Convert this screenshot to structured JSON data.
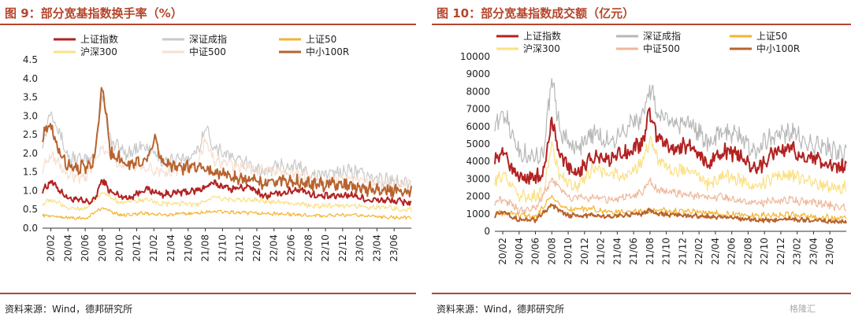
{
  "source_text": "资料来源：Wind，德邦研究所",
  "watermark": "格隆汇",
  "colors": {
    "accent": "#b5462c"
  },
  "chart_data": [
    {
      "type": "line",
      "title": "图 9：部分宽基指数换手率（%）",
      "ylim": [
        0,
        4.5
      ],
      "yticks": [
        "0.0",
        "0.5",
        "1.0",
        "1.5",
        "2.0",
        "2.5",
        "3.0",
        "3.5",
        "4.0",
        "4.5"
      ],
      "xticks": [
        "20/02",
        "20/04",
        "20/06",
        "20/08",
        "20/10",
        "20/12",
        "21/02",
        "21/04",
        "21/06",
        "21/08",
        "21/10",
        "21/12",
        "22/02",
        "22/04",
        "22/06",
        "22/08",
        "22/10",
        "22/12",
        "23/02",
        "23/04",
        "23/06"
      ],
      "x_start": "2020-01-02",
      "x_end": "2023-07-31",
      "series": [
        {
          "name": "上证指数",
          "color": "#b22222",
          "width": 2,
          "anchors": [
            [
              0,
              1.0
            ],
            [
              1,
              1.25
            ],
            [
              3,
              0.8
            ],
            [
              5,
              0.7
            ],
            [
              6,
              0.72
            ],
            [
              7,
              1.3
            ],
            [
              8,
              0.95
            ],
            [
              10,
              0.8
            ],
            [
              12,
              1.05
            ],
            [
              14,
              0.9
            ],
            [
              16,
              0.95
            ],
            [
              18,
              1.0
            ],
            [
              20,
              1.2
            ],
            [
              22,
              1.05
            ],
            [
              24,
              1.1
            ],
            [
              26,
              0.85
            ],
            [
              28,
              0.95
            ],
            [
              30,
              1.05
            ],
            [
              32,
              0.85
            ],
            [
              34,
              0.85
            ],
            [
              36,
              0.9
            ],
            [
              38,
              0.75
            ],
            [
              40,
              0.75
            ],
            [
              42,
              0.7
            ]
          ],
          "noise": 0.08
        },
        {
          "name": "深证成指",
          "color": "#c8c8c8",
          "width": 1.2,
          "anchors": [
            [
              0,
              2.2
            ],
            [
              1,
              3.2
            ],
            [
              3,
              1.9
            ],
            [
              5,
              1.8
            ],
            [
              6,
              1.85
            ],
            [
              7,
              3.6
            ],
            [
              8,
              2.3
            ],
            [
              10,
              2.0
            ],
            [
              12,
              2.2
            ],
            [
              14,
              1.8
            ],
            [
              16,
              1.8
            ],
            [
              18,
              2.0
            ],
            [
              19,
              2.7
            ],
            [
              20,
              2.2
            ],
            [
              22,
              1.9
            ],
            [
              24,
              1.7
            ],
            [
              26,
              1.5
            ],
            [
              28,
              1.7
            ],
            [
              30,
              1.6
            ],
            [
              32,
              1.4
            ],
            [
              34,
              1.5
            ],
            [
              36,
              1.55
            ],
            [
              38,
              1.35
            ],
            [
              40,
              1.3
            ],
            [
              42,
              1.25
            ]
          ],
          "noise": 0.16
        },
        {
          "name": "上证50",
          "color": "#f2b531",
          "width": 1.2,
          "anchors": [
            [
              0,
              0.35
            ],
            [
              2,
              0.3
            ],
            [
              5,
              0.25
            ],
            [
              7,
              0.55
            ],
            [
              9,
              0.35
            ],
            [
              12,
              0.4
            ],
            [
              14,
              0.35
            ],
            [
              18,
              0.4
            ],
            [
              20,
              0.45
            ],
            [
              24,
              0.4
            ],
            [
              28,
              0.38
            ],
            [
              32,
              0.33
            ],
            [
              36,
              0.35
            ],
            [
              40,
              0.3
            ],
            [
              42,
              0.28
            ]
          ],
          "noise": 0.04
        },
        {
          "name": "沪深300",
          "color": "#fbe084",
          "width": 1.2,
          "anchors": [
            [
              0,
              0.65
            ],
            [
              1,
              0.75
            ],
            [
              3,
              0.55
            ],
            [
              5,
              0.5
            ],
            [
              7,
              0.95
            ],
            [
              9,
              0.7
            ],
            [
              12,
              0.75
            ],
            [
              14,
              0.65
            ],
            [
              18,
              0.65
            ],
            [
              20,
              0.8
            ],
            [
              24,
              0.75
            ],
            [
              28,
              0.7
            ],
            [
              32,
              0.6
            ],
            [
              36,
              0.6
            ],
            [
              40,
              0.55
            ],
            [
              42,
              0.5
            ]
          ],
          "noise": 0.06
        },
        {
          "name": "中证500",
          "color": "#f6dfd0",
          "width": 1.2,
          "anchors": [
            [
              0,
              1.6
            ],
            [
              1,
              2.0
            ],
            [
              3,
              1.4
            ],
            [
              5,
              1.3
            ],
            [
              7,
              2.2
            ],
            [
              9,
              1.7
            ],
            [
              12,
              1.6
            ],
            [
              14,
              1.5
            ],
            [
              18,
              1.6
            ],
            [
              19,
              2.4
            ],
            [
              20,
              1.8
            ],
            [
              24,
              1.6
            ],
            [
              28,
              1.5
            ],
            [
              32,
              1.3
            ],
            [
              36,
              1.3
            ],
            [
              40,
              1.2
            ],
            [
              42,
              1.15
            ]
          ],
          "noise": 0.13
        },
        {
          "name": "中小100R",
          "color": "#b8632e",
          "width": 2,
          "anchors": [
            [
              0,
              2.5
            ],
            [
              1,
              2.7
            ],
            [
              2,
              2.0
            ],
            [
              3,
              1.7
            ],
            [
              5,
              1.6
            ],
            [
              6,
              1.8
            ],
            [
              7,
              3.8
            ],
            [
              8,
              2.0
            ],
            [
              10,
              1.7
            ],
            [
              12,
              1.8
            ],
            [
              13,
              2.4
            ],
            [
              14,
              1.8
            ],
            [
              16,
              1.6
            ],
            [
              18,
              1.7
            ],
            [
              20,
              1.5
            ],
            [
              22,
              1.4
            ],
            [
              24,
              1.3
            ],
            [
              26,
              1.2
            ],
            [
              28,
              1.3
            ],
            [
              30,
              1.25
            ],
            [
              32,
              1.15
            ],
            [
              34,
              1.2
            ],
            [
              36,
              1.1
            ],
            [
              38,
              1.05
            ],
            [
              40,
              1.0
            ],
            [
              42,
              1.0
            ]
          ],
          "noise": 0.15
        }
      ]
    },
    {
      "type": "line",
      "title": "图 10：部分宽基指数成交额（亿元）",
      "ylim": [
        0,
        10000
      ],
      "yticks": [
        "0",
        "1000",
        "2000",
        "3000",
        "4000",
        "5000",
        "6000",
        "7000",
        "8000",
        "9000",
        "10000"
      ],
      "xticks": [
        "20/02",
        "20/04",
        "20/06",
        "20/08",
        "20/10",
        "20/12",
        "21/02",
        "21/04",
        "21/06",
        "21/08",
        "21/10",
        "21/12",
        "22/02",
        "22/04",
        "22/06",
        "22/08",
        "22/10",
        "22/12",
        "23/02",
        "23/04",
        "23/06"
      ],
      "x_start": "2020-01-02",
      "x_end": "2023-07-31",
      "series": [
        {
          "name": "上证指数",
          "color": "#b22222",
          "width": 2,
          "anchors": [
            [
              0,
              4200
            ],
            [
              1,
              4500
            ],
            [
              3,
              3000
            ],
            [
              5,
              3100
            ],
            [
              6,
              3200
            ],
            [
              7,
              6500
            ],
            [
              8,
              4200
            ],
            [
              10,
              3400
            ],
            [
              12,
              4200
            ],
            [
              14,
              4000
            ],
            [
              16,
              4500
            ],
            [
              18,
              5000
            ],
            [
              19,
              6800
            ],
            [
              20,
              5200
            ],
            [
              22,
              4800
            ],
            [
              24,
              5000
            ],
            [
              26,
              3800
            ],
            [
              28,
              4600
            ],
            [
              30,
              4400
            ],
            [
              32,
              3600
            ],
            [
              34,
              4400
            ],
            [
              36,
              4800
            ],
            [
              38,
              4200
            ],
            [
              40,
              4000
            ],
            [
              42,
              3700
            ]
          ],
          "noise": 380
        },
        {
          "name": "深证成指",
          "color": "#b7b7b7",
          "width": 1.2,
          "anchors": [
            [
              0,
              6000
            ],
            [
              1,
              7000
            ],
            [
              3,
              4400
            ],
            [
              5,
              4300
            ],
            [
              6,
              4500
            ],
            [
              7,
              8700
            ],
            [
              8,
              5800
            ],
            [
              10,
              4600
            ],
            [
              12,
              5600
            ],
            [
              14,
              5200
            ],
            [
              16,
              5800
            ],
            [
              18,
              6600
            ],
            [
              19,
              8300
            ],
            [
              20,
              6800
            ],
            [
              22,
              6200
            ],
            [
              24,
              6300
            ],
            [
              26,
              5000
            ],
            [
              28,
              5800
            ],
            [
              30,
              5500
            ],
            [
              32,
              4600
            ],
            [
              34,
              5400
            ],
            [
              36,
              5700
            ],
            [
              38,
              5100
            ],
            [
              40,
              4800
            ],
            [
              42,
              4600
            ]
          ],
          "noise": 500
        },
        {
          "name": "上证50",
          "color": "#f2b531",
          "width": 1.2,
          "anchors": [
            [
              0,
              1100
            ],
            [
              2,
              1000
            ],
            [
              5,
              800
            ],
            [
              7,
              2000
            ],
            [
              9,
              1200
            ],
            [
              12,
              1300
            ],
            [
              14,
              1100
            ],
            [
              18,
              1100
            ],
            [
              20,
              1200
            ],
            [
              24,
              1100
            ],
            [
              28,
              1000
            ],
            [
              32,
              900
            ],
            [
              36,
              950
            ],
            [
              40,
              800
            ],
            [
              42,
              750
            ]
          ],
          "noise": 150
        },
        {
          "name": "沪深300",
          "color": "#fbe084",
          "width": 1.2,
          "anchors": [
            [
              0,
              2900
            ],
            [
              1,
              3200
            ],
            [
              3,
              2000
            ],
            [
              5,
              2000
            ],
            [
              6,
              2200
            ],
            [
              7,
              5000
            ],
            [
              8,
              3100
            ],
            [
              10,
              2500
            ],
            [
              12,
              3600
            ],
            [
              14,
              3300
            ],
            [
              16,
              3200
            ],
            [
              18,
              3900
            ],
            [
              19,
              5200
            ],
            [
              20,
              4000
            ],
            [
              22,
              3500
            ],
            [
              24,
              3600
            ],
            [
              26,
              2700
            ],
            [
              28,
              3200
            ],
            [
              30,
              3000
            ],
            [
              32,
              2500
            ],
            [
              34,
              3100
            ],
            [
              36,
              3300
            ],
            [
              38,
              2900
            ],
            [
              40,
              2700
            ],
            [
              42,
              2500
            ]
          ],
          "noise": 320
        },
        {
          "name": "中证500",
          "color": "#efb79a",
          "width": 1.2,
          "anchors": [
            [
              0,
              1700
            ],
            [
              1,
              1900
            ],
            [
              3,
              1200
            ],
            [
              5,
              1300
            ],
            [
              7,
              3000
            ],
            [
              9,
              1900
            ],
            [
              12,
              1900
            ],
            [
              14,
              1800
            ],
            [
              18,
              2200
            ],
            [
              19,
              2900
            ],
            [
              20,
              2300
            ],
            [
              24,
              2100
            ],
            [
              28,
              1900
            ],
            [
              32,
              1600
            ],
            [
              36,
              1800
            ],
            [
              40,
              1600
            ],
            [
              42,
              1400
            ]
          ],
          "noise": 200
        },
        {
          "name": "中小100R",
          "color": "#b8632e",
          "width": 2,
          "anchors": [
            [
              0,
              900
            ],
            [
              1,
              1100
            ],
            [
              3,
              650
            ],
            [
              5,
              650
            ],
            [
              7,
              1500
            ],
            [
              9,
              900
            ],
            [
              12,
              900
            ],
            [
              14,
              850
            ],
            [
              18,
              1000
            ],
            [
              19,
              1200
            ],
            [
              20,
              1000
            ],
            [
              24,
              900
            ],
            [
              28,
              800
            ],
            [
              32,
              650
            ],
            [
              36,
              700
            ],
            [
              40,
              600
            ],
            [
              42,
              550
            ]
          ],
          "noise": 110
        }
      ]
    }
  ]
}
